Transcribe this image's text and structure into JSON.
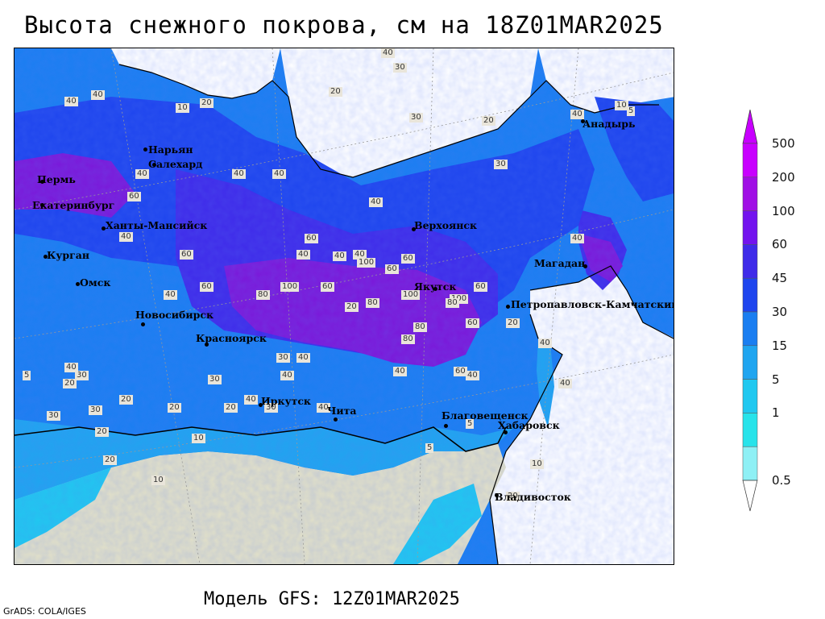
{
  "title": "Высота снежного покрова, см на 18Z01MAR2025",
  "subtitle": "Модель GFS: 12Z01MAR2025",
  "credit": "GrADS: COLA/IGES",
  "legend": {
    "labels": [
      "500",
      "200",
      "100",
      "60",
      "45",
      "30",
      "15",
      "5",
      "1",
      "0.5"
    ],
    "colors": [
      "#c800ff",
      "#a00fe5",
      "#7313ee",
      "#3f2be9",
      "#1e45ee",
      "#1a7ef1",
      "#1fa5f0",
      "#20c8f0",
      "#27e3ea",
      "#8ef0f5"
    ]
  },
  "map": {
    "colors": {
      "land_no_snow": "#e3e1c8",
      "sea": "#ffffff",
      "snow_low": "#3bd6ee",
      "snow_mid": "#1a7ef1",
      "snow_high": "#3f2be9",
      "snow_deep": "#7b18d9"
    },
    "cities": [
      {
        "name": "Анадырь"
      },
      {
        "name": "Нарьян"
      },
      {
        "name": "Салехард"
      },
      {
        "name": "Пермь"
      },
      {
        "name": "Екатеринбург"
      },
      {
        "name": "Ханты-Мансийск"
      },
      {
        "name": "Верхоянск"
      },
      {
        "name": "Курган"
      },
      {
        "name": "Омск"
      },
      {
        "name": "Магадан"
      },
      {
        "name": "Якутск"
      },
      {
        "name": "Петропавловск-Камчатский"
      },
      {
        "name": "Новосибирск"
      },
      {
        "name": "Красноярск"
      },
      {
        "name": "Иркутск"
      },
      {
        "name": "Чита"
      },
      {
        "name": "Благовещенск"
      },
      {
        "name": "Хабаровск"
      },
      {
        "name": "Владивосток"
      }
    ],
    "contour_labels": [
      "40",
      "30",
      "20",
      "30",
      "20",
      "20",
      "40",
      "40",
      "10",
      "5",
      "40",
      "30",
      "40",
      "40",
      "40",
      "40",
      "60",
      "60",
      "40",
      "40",
      "60",
      "40",
      "40",
      "20",
      "40",
      "60",
      "60",
      "100",
      "100",
      "80",
      "80",
      "80",
      "100",
      "60",
      "40",
      "100",
      "60",
      "60",
      "80",
      "80",
      "60",
      "40",
      "40",
      "30",
      "40",
      "40",
      "40",
      "40",
      "30",
      "60",
      "30",
      "20",
      "20",
      "20",
      "10",
      "20",
      "10",
      "20",
      "30",
      "20",
      "30",
      "30",
      "40",
      "40",
      "40",
      "20",
      "5",
      "5",
      "10",
      "20",
      "40",
      "10",
      "5"
    ]
  }
}
